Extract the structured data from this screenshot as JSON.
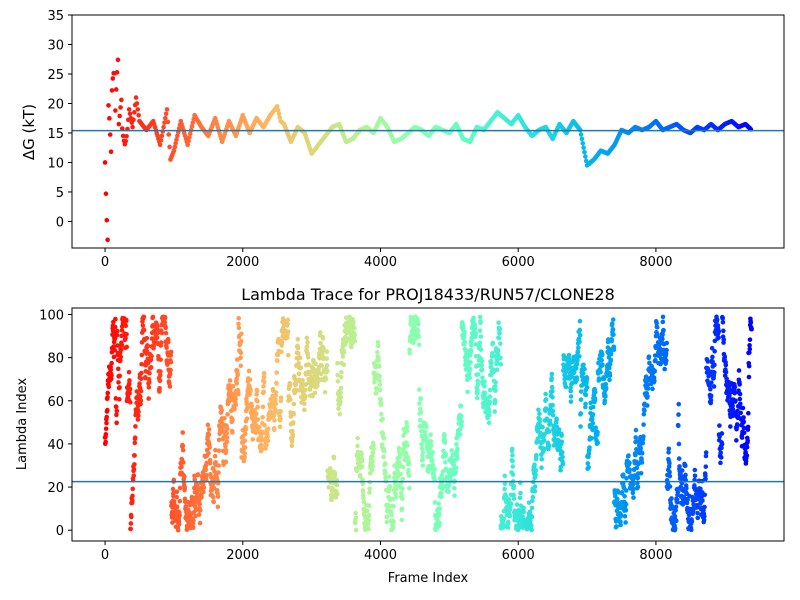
{
  "chart_data": [
    {
      "type": "scatter",
      "title": "",
      "xlabel": "",
      "ylabel": "ΔG (kT)",
      "xlim": [
        -480,
        9860
      ],
      "ylim": [
        -4.5,
        35
      ],
      "xticks": [
        0,
        2000,
        4000,
        6000,
        8000
      ],
      "xtick_labels": [
        "0",
        "2000",
        "4000",
        "6000",
        "8000"
      ],
      "yticks": [
        0,
        5,
        10,
        15,
        20,
        25,
        30,
        35
      ],
      "ytick_labels": [
        "0",
        "5",
        "10",
        "15",
        "20",
        "25",
        "30",
        "35"
      ],
      "grid": false,
      "colormap": "rainbow (red at frame 0 → violet at last frame)",
      "hline": {
        "y": 15.4,
        "color": "#1f77b4"
      },
      "series": [
        {
          "x": [
            0,
            50,
            100,
            150,
            200,
            250,
            300,
            350,
            400,
            450,
            500,
            600,
            700,
            800,
            900,
            950,
            1000,
            1100,
            1200,
            1300,
            1400,
            1500,
            1600,
            1700,
            1800,
            1900,
            2000,
            2100,
            2200,
            2300,
            2400,
            2500,
            2550,
            2600,
            2700,
            2800,
            2900,
            3000,
            3100,
            3200,
            3300,
            3400,
            3500,
            3600,
            3700,
            3800,
            3900,
            4000,
            4100,
            4200,
            4300,
            4400,
            4500,
            4600,
            4700,
            4800,
            4900,
            5000,
            5100,
            5200,
            5300,
            5400,
            5500,
            5600,
            5700,
            5800,
            5900,
            6000,
            6100,
            6200,
            6300,
            6400,
            6500,
            6600,
            6700,
            6800,
            6900,
            7000,
            7100,
            7200,
            7300,
            7400,
            7500,
            7600,
            7700,
            7800,
            7900,
            8000,
            8100,
            8200,
            8300,
            8400,
            8500,
            8600,
            8700,
            8800,
            8900,
            9000,
            9100,
            9200,
            9300,
            9390
          ],
          "y": [
            10,
            8,
            12,
            18,
            22,
            20,
            14,
            19,
            16,
            21,
            17,
            15.5,
            17,
            13,
            19,
            10.5,
            12,
            17,
            13,
            18,
            16,
            14.5,
            17.5,
            13.5,
            17,
            14.5,
            18,
            15,
            17.5,
            16,
            18,
            19.5,
            17,
            16.5,
            13.5,
            16,
            15,
            11.5,
            13,
            14.5,
            16,
            16.5,
            13.5,
            14,
            15.5,
            16,
            15,
            17.5,
            16,
            13.5,
            14,
            15,
            16,
            15.5,
            14.5,
            16,
            15.5,
            15,
            16.5,
            14,
            13.5,
            16,
            15.5,
            17,
            18.5,
            17.5,
            16.5,
            18,
            16,
            14.5,
            15.5,
            16,
            14,
            16.5,
            15,
            17,
            15.5,
            9.5,
            10.5,
            12,
            11.5,
            13,
            15.5,
            15,
            16,
            15.5,
            16,
            17,
            15.5,
            16,
            16.5,
            15.5,
            15,
            16,
            15.5,
            16.5,
            15.5,
            16.5,
            17,
            16,
            16.5,
            15.5
          ]
        }
      ]
    },
    {
      "type": "scatter",
      "title": "Lambda Trace for PROJ18433/RUN57/CLONE28",
      "xlabel": "Frame Index",
      "ylabel": "Lambda Index",
      "xlim": [
        -480,
        9860
      ],
      "ylim": [
        -5,
        103
      ],
      "xticks": [
        0,
        2000,
        4000,
        6000,
        8000
      ],
      "xtick_labels": [
        "0",
        "2000",
        "4000",
        "6000",
        "8000"
      ],
      "yticks": [
        0,
        20,
        40,
        60,
        80,
        100
      ],
      "ytick_labels": [
        "0",
        "20",
        "40",
        "60",
        "80",
        "100"
      ],
      "grid": false,
      "colormap": "rainbow (red at frame 0 → violet at last frame)",
      "hline": {
        "y": 22.5,
        "color": "#1f77b4"
      },
      "series": [
        {
          "x_range": [
            0,
            9390
          ],
          "y_range": [
            0,
            99
          ],
          "description_values": "lambda index fluctuating between 0 and 99 across all frames"
        }
      ]
    }
  ]
}
